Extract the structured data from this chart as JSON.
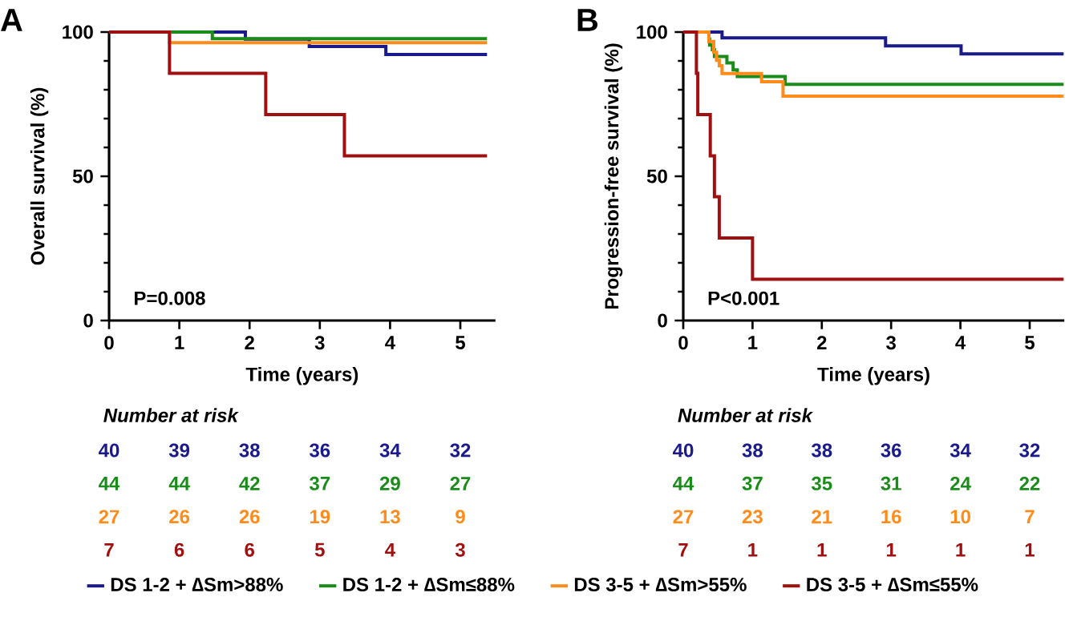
{
  "chart_data": [
    {
      "type": "step",
      "title": "A",
      "xlabel": "Time (years)",
      "ylabel": "Overall survival (%)",
      "xlim": [
        0,
        5.5
      ],
      "ylim": [
        0,
        100
      ],
      "xticks": [
        0,
        1,
        2,
        3,
        4,
        5
      ],
      "yticks": [
        0,
        50,
        100
      ],
      "legend": "bottom",
      "series": [
        {
          "name": "DS 1-2 + ∆Sm>88%",
          "color": "#1a1a8c",
          "x": [
            0,
            1.94,
            2.85,
            3.94,
            5.38
          ],
          "values": [
            100,
            97.6,
            95,
            92.2,
            92.2
          ]
        },
        {
          "name": "DS 1-2 + ∆Sm≤88%",
          "color": "#1a8c1a",
          "x": [
            0,
            1.47,
            5.38
          ],
          "values": [
            100,
            97.7,
            97.7
          ]
        },
        {
          "name": "DS 3-5 + ∆Sm>55%",
          "color": "#ff8c1a",
          "x": [
            0,
            0.86,
            5.38
          ],
          "values": [
            100,
            96.3,
            96.3
          ]
        },
        {
          "name": "DS 3-5 + ∆Sm≤55%",
          "color": "#a01010",
          "x": [
            0,
            0.86,
            2.23,
            3.35,
            5.38
          ],
          "values": [
            100,
            85.7,
            71.4,
            57.1,
            57.1
          ]
        }
      ],
      "annotations": [
        "P=0.008",
        "Number at risk",
        "40",
        "39",
        "38",
        "36",
        "34",
        "32",
        "44",
        "44",
        "42",
        "37",
        "29",
        "27",
        "27",
        "26",
        "26",
        "19",
        "13",
        "9",
        "7",
        "6",
        "6",
        "5",
        "4",
        "3"
      ]
    },
    {
      "type": "step",
      "title": "B",
      "xlabel": "Time (years)",
      "ylabel": "Progression-free survival (%)",
      "xlim": [
        0,
        5.5
      ],
      "ylim": [
        0,
        100
      ],
      "xticks": [
        0,
        1,
        2,
        3,
        4,
        5
      ],
      "yticks": [
        0,
        50,
        100
      ],
      "series": [
        {
          "color": "#1a1a8c",
          "x": [
            0,
            0.56,
            2.92,
            4.01,
            5.49
          ],
          "values": [
            100,
            98,
            95.2,
            92.4,
            92.4
          ]
        },
        {
          "color": "#1a8c1a",
          "x": [
            0,
            0.37,
            0.38,
            0.42,
            0.45,
            0.63,
            0.72,
            0.78,
            1.47,
            5.49
          ],
          "values": [
            100,
            97.6,
            95.5,
            93.9,
            91.5,
            89.3,
            86.9,
            84.6,
            81.9,
            81.9
          ]
        },
        {
          "color": "#ff8c1a",
          "x": [
            0,
            0.37,
            0.44,
            0.48,
            0.52,
            0.56,
            1.13,
            1.44,
            5.49
          ],
          "values": [
            100,
            96.7,
            93,
            90.2,
            88.3,
            85.6,
            82.8,
            77.8,
            77.8
          ]
        },
        {
          "color": "#a01010",
          "x": [
            0,
            0.19,
            0.21,
            0.39,
            0.45,
            0.52,
            1.0,
            5.49
          ],
          "values": [
            100,
            85.7,
            71.4,
            57.1,
            42.9,
            28.6,
            14.3,
            14.3
          ]
        }
      ],
      "annotations": [
        "P<0.001",
        "Number at risk",
        "40",
        "38",
        "38",
        "36",
        "34",
        "32",
        "44",
        "37",
        "35",
        "31",
        "24",
        "22",
        "27",
        "23",
        "21",
        "16",
        "10",
        "7",
        "7",
        "1",
        "1",
        "1",
        "1",
        "1"
      ]
    }
  ]
}
